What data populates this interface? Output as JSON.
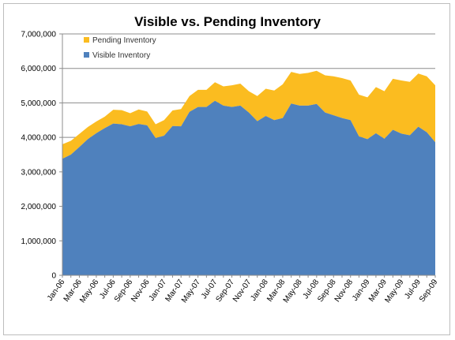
{
  "chart_data": {
    "type": "area",
    "title": "Visible vs. Pending Inventory",
    "xlabel": "",
    "ylabel": "",
    "stacked": true,
    "ylim": [
      0,
      7000000
    ],
    "yticks": [
      "0",
      "1,000,000",
      "2,000,000",
      "3,000,000",
      "4,000,000",
      "5,000,000",
      "6,000,000",
      "7,000,000"
    ],
    "ytick_values": [
      0,
      1000000,
      2000000,
      3000000,
      4000000,
      5000000,
      6000000,
      7000000
    ],
    "grid": "horizontal",
    "legend": "top-left",
    "x": [
      "Jan-06",
      "Feb-06",
      "Mar-06",
      "Apr-06",
      "May-06",
      "Jun-06",
      "Jul-06",
      "Aug-06",
      "Sep-06",
      "Oct-06",
      "Nov-06",
      "Dec-06",
      "Jan-07",
      "Feb-07",
      "Mar-07",
      "Apr-07",
      "May-07",
      "Jun-07",
      "Jul-07",
      "Aug-07",
      "Sep-07",
      "Oct-07",
      "Nov-07",
      "Dec-07",
      "Jan-08",
      "Feb-08",
      "Mar-08",
      "Apr-08",
      "May-08",
      "Jun-08",
      "Jul-08",
      "Aug-08",
      "Sep-08",
      "Oct-08",
      "Nov-08",
      "Dec-08",
      "Jan-09",
      "Feb-09",
      "Mar-09",
      "Apr-09",
      "May-09",
      "Jun-09",
      "Jul-09",
      "Aug-09",
      "Sep-09"
    ],
    "xticks_shown": [
      "Jan-06",
      "Mar-06",
      "May-06",
      "Jul-06",
      "Sep-06",
      "Nov-06",
      "Jan-07",
      "Mar-07",
      "May-07",
      "Jul-07",
      "Sep-07",
      "Nov-07",
      "Jan-08",
      "Mar-08",
      "May-08",
      "Jul-08",
      "Sep-08",
      "Nov-08",
      "Jan-09",
      "Mar-09",
      "May-09",
      "Jul-09",
      "Sep-09"
    ],
    "series": [
      {
        "name": "Visible Inventory",
        "color": "#4f81bd",
        "values": [
          3380000,
          3500000,
          3720000,
          3950000,
          4120000,
          4270000,
          4400000,
          4380000,
          4320000,
          4390000,
          4350000,
          3980000,
          4050000,
          4330000,
          4320000,
          4740000,
          4880000,
          4880000,
          5060000,
          4920000,
          4880000,
          4920000,
          4720000,
          4470000,
          4620000,
          4500000,
          4560000,
          4980000,
          4920000,
          4920000,
          4970000,
          4720000,
          4640000,
          4560000,
          4500000,
          4030000,
          3950000,
          4120000,
          3960000,
          4220000,
          4110000,
          4060000,
          4310000,
          4150000,
          3860000
        ]
      },
      {
        "name": "Pending Inventory",
        "color": "#fbbc20",
        "values": [
          420000,
          400000,
          380000,
          350000,
          340000,
          330000,
          400000,
          410000,
          380000,
          420000,
          400000,
          400000,
          450000,
          450000,
          500000,
          460000,
          500000,
          500000,
          540000,
          560000,
          630000,
          640000,
          620000,
          730000,
          790000,
          860000,
          980000,
          920000,
          920000,
          950000,
          960000,
          1080000,
          1130000,
          1160000,
          1150000,
          1210000,
          1210000,
          1340000,
          1380000,
          1480000,
          1540000,
          1550000,
          1540000,
          1620000,
          1650000
        ]
      }
    ]
  }
}
